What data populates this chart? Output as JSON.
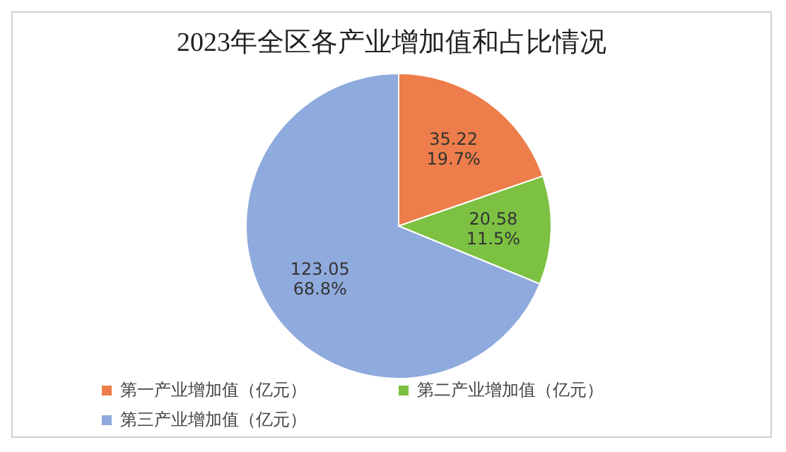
{
  "chart_data": {
    "type": "pie",
    "title": "2023年全区各产业增加值和占比情况",
    "categories": [
      "第一产业增加值（亿元）",
      "第二产业增加值（亿元）",
      "第三产业增加值（亿元）"
    ],
    "values": [
      35.22,
      20.58,
      123.05
    ],
    "value_labels": [
      "35.22\n19.7%",
      "20.58\n11.5%",
      "123.05\n68.8%"
    ],
    "colors": [
      "#ed7d4a",
      "#7cc142",
      "#8faadc"
    ],
    "legend": "bottom"
  }
}
